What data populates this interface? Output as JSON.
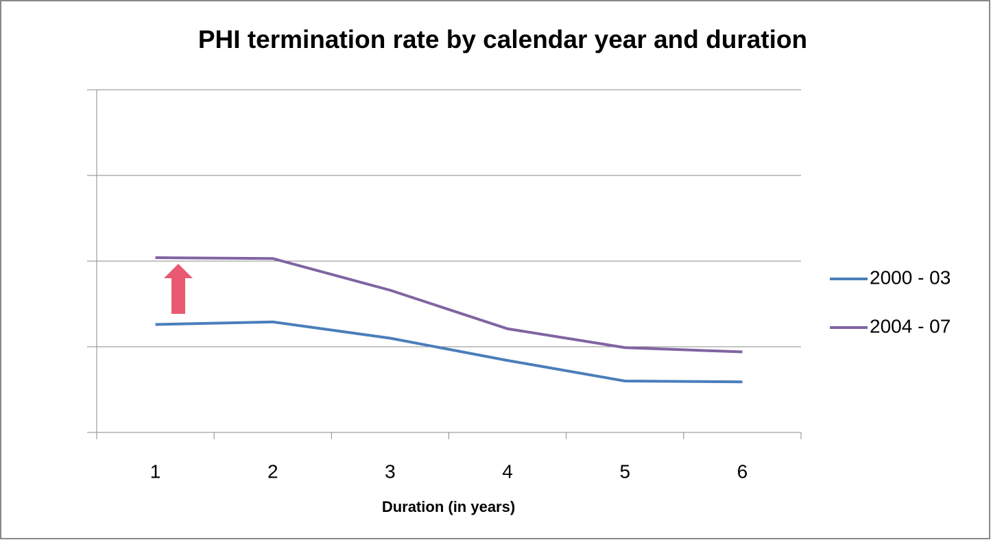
{
  "chart_data": {
    "type": "line",
    "title": "PHI termination rate by calendar year and duration",
    "x_label": "Duration (in years)",
    "categories": [
      "1",
      "2",
      "3",
      "4",
      "5",
      "6"
    ],
    "series": [
      {
        "name": "2000 - 03",
        "color": "#4a7ebb",
        "values": [
          1.26,
          1.29,
          1.1,
          0.84,
          0.6,
          0.59
        ]
      },
      {
        "name": "2004 - 07",
        "color": "#8064a2",
        "values": [
          2.04,
          2.03,
          1.66,
          1.21,
          0.99,
          0.94
        ]
      }
    ],
    "ylim": [
      0,
      4
    ],
    "yticks": [
      0,
      1,
      2,
      3,
      4
    ],
    "grid": true,
    "legend": "right"
  }
}
